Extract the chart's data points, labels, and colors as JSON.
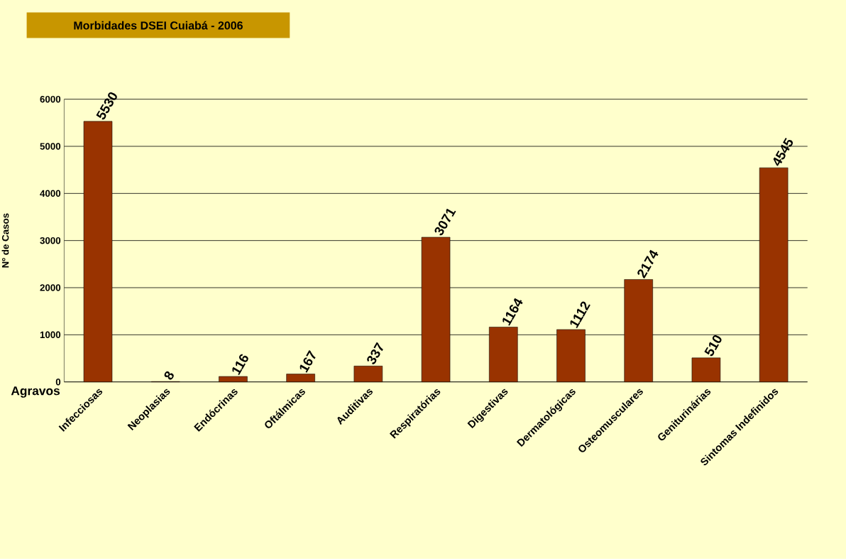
{
  "chart_data": {
    "type": "bar",
    "title": "Morbidades DSEI Cuiabá - 2006",
    "xlabel": "Agravos",
    "ylabel": "Nº de Casos",
    "categories": [
      "Infecciosas",
      "Neoplasias",
      "Endócrinas",
      "Oftálmicas",
      "Auditivas",
      "Respiratórias",
      "Digestivas",
      "Dermatológicas",
      "Osteomusculares",
      "Geniturinárias",
      "Sintomas Indefinidos"
    ],
    "values": [
      5530,
      8,
      116,
      167,
      337,
      3071,
      1164,
      1112,
      2174,
      510,
      4545
    ],
    "color": "#993300",
    "ylim": [
      0,
      6000
    ],
    "yticks": [
      0,
      1000,
      2000,
      3000,
      4000,
      5000,
      6000
    ],
    "grid": "y",
    "data_labels": true
  }
}
